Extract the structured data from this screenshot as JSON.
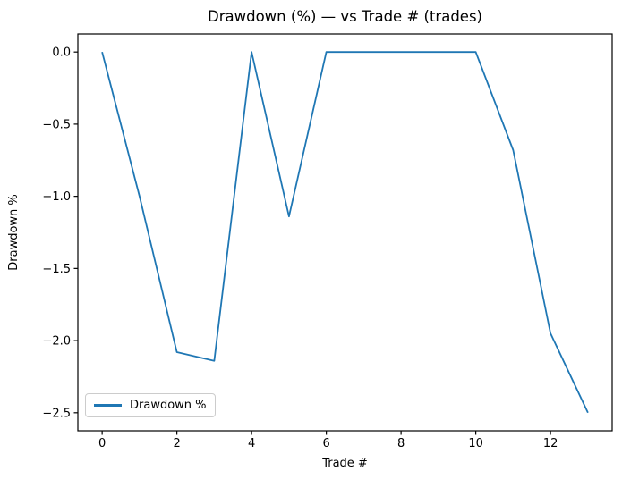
{
  "figure": {
    "background": "#ffffff"
  },
  "chart_data": {
    "type": "line",
    "title": "Drawdown (%) — vs Trade # (trades)",
    "xlabel": "Trade #",
    "ylabel": "Drawdown %",
    "x": [
      0,
      1,
      2,
      3,
      4,
      5,
      6,
      7,
      8,
      9,
      10,
      11,
      12,
      13
    ],
    "series": [
      {
        "name": "Drawdown %",
        "color": "#1f77b4",
        "values": [
          0.0,
          -1.0,
          -2.08,
          -2.14,
          0.0,
          -1.14,
          0.0,
          0.0,
          0.0,
          0.0,
          0.0,
          -0.68,
          -1.95,
          -2.5
        ]
      }
    ],
    "xlim": [
      -0.65,
      13.65
    ],
    "ylim": [
      -2.625,
      0.125
    ],
    "x_ticks": [
      0,
      2,
      4,
      6,
      8,
      10,
      12
    ],
    "x_tick_labels": [
      "0",
      "2",
      "4",
      "6",
      "8",
      "10",
      "12"
    ],
    "y_ticks": [
      0.0,
      -0.5,
      -1.0,
      -1.5,
      -2.0,
      -2.5
    ],
    "y_tick_labels": [
      "0.0",
      "−0.5",
      "−1.0",
      "−1.5",
      "−2.0",
      "−2.5"
    ],
    "grid": false,
    "line_width": 1.8,
    "spine_color": "#000000",
    "legend": {
      "position": "lower left",
      "entries": [
        "Drawdown %"
      ]
    }
  }
}
